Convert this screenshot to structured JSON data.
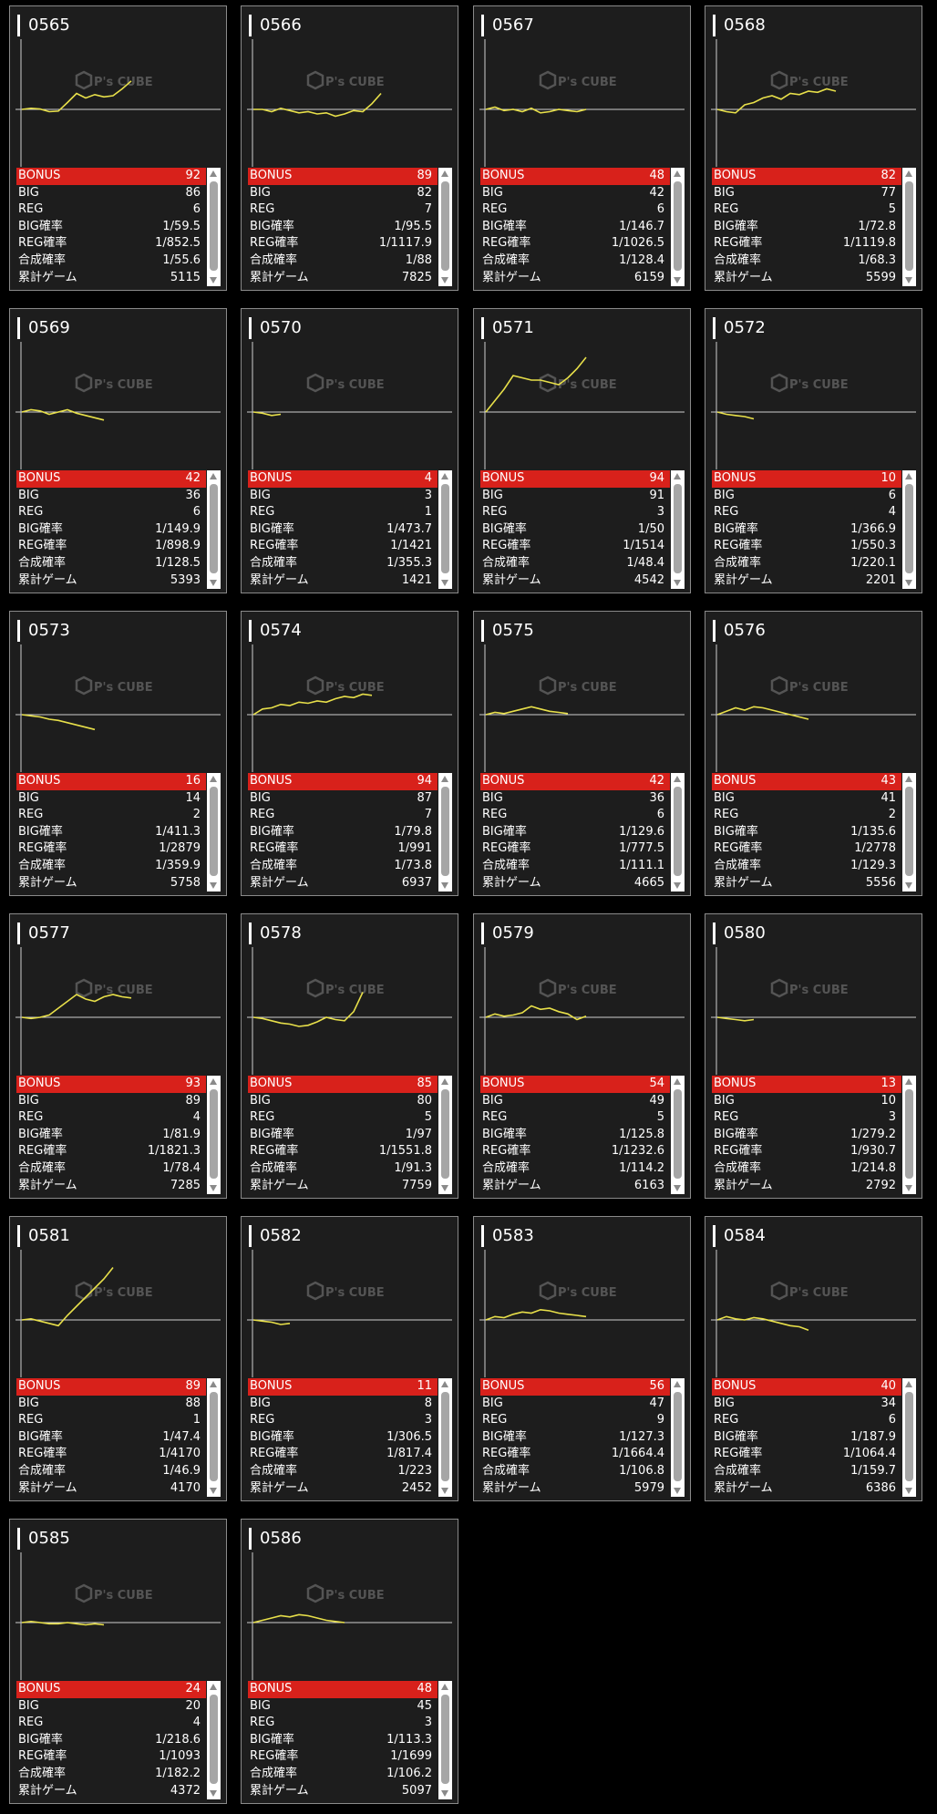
{
  "labels": {
    "bonus": "BONUS",
    "big": "BIG",
    "reg": "REG",
    "big_rate": "BIG確率",
    "reg_rate": "REG確率",
    "combined_rate": "合成確率",
    "total_games": "累計ゲーム"
  },
  "watermark": {
    "brand": "P's CUBE"
  },
  "colors": {
    "bonus_bar": "#d8211b",
    "line": "#e8e04a",
    "card_bg": "#1d1d1d"
  },
  "machines": [
    {
      "id": "0565",
      "bonus": "92",
      "big": "86",
      "reg": "6",
      "big_rate": "1/59.5",
      "reg_rate": "1/852.5",
      "combined_rate": "1/55.6",
      "total_games": "5115",
      "trend": [
        0,
        1,
        0.3,
        -2,
        -1.5,
        6,
        14,
        10,
        13,
        11,
        12,
        18,
        25
      ]
    },
    {
      "id": "0566",
      "bonus": "89",
      "big": "82",
      "reg": "7",
      "big_rate": "1/95.5",
      "reg_rate": "1/1117.9",
      "combined_rate": "1/88",
      "total_games": "7825",
      "trend": [
        0,
        0,
        -2,
        1,
        -1,
        -3,
        -2,
        -4,
        -3,
        -6,
        -4,
        -1,
        -2,
        5,
        14
      ]
    },
    {
      "id": "0567",
      "bonus": "48",
      "big": "42",
      "reg": "6",
      "big_rate": "1/146.7",
      "reg_rate": "1/1026.5",
      "combined_rate": "1/128.4",
      "total_games": "6159",
      "trend": [
        0,
        2,
        -1,
        0,
        -2,
        1,
        -3,
        -2,
        0,
        -1,
        -2,
        0
      ]
    },
    {
      "id": "0568",
      "bonus": "82",
      "big": "77",
      "reg": "5",
      "big_rate": "1/72.8",
      "reg_rate": "1/1119.8",
      "combined_rate": "1/68.3",
      "total_games": "5599",
      "trend": [
        0,
        -2,
        -3,
        4,
        6,
        10,
        12,
        9,
        14,
        13,
        16,
        15,
        18,
        16
      ]
    },
    {
      "id": "0569",
      "bonus": "42",
      "big": "36",
      "reg": "6",
      "big_rate": "1/149.9",
      "reg_rate": "1/898.9",
      "combined_rate": "1/128.5",
      "total_games": "5393",
      "trend": [
        0,
        2,
        1,
        -2,
        0,
        2,
        -1,
        -3,
        -5,
        -7
      ]
    },
    {
      "id": "0570",
      "bonus": "4",
      "big": "3",
      "reg": "1",
      "big_rate": "1/473.7",
      "reg_rate": "1/1421",
      "combined_rate": "1/355.3",
      "total_games": "1421",
      "trend": [
        0,
        -1,
        -3,
        -2
      ]
    },
    {
      "id": "0571",
      "bonus": "94",
      "big": "91",
      "reg": "3",
      "big_rate": "1/50",
      "reg_rate": "1/1514",
      "combined_rate": "1/48.4",
      "total_games": "4542",
      "trend": [
        0,
        10,
        20,
        32,
        30,
        28,
        28,
        26,
        24,
        30,
        38,
        48
      ]
    },
    {
      "id": "0572",
      "bonus": "10",
      "big": "6",
      "reg": "4",
      "big_rate": "1/366.9",
      "reg_rate": "1/550.3",
      "combined_rate": "1/220.1",
      "total_games": "2201",
      "trend": [
        0,
        -2,
        -3,
        -4,
        -6
      ]
    },
    {
      "id": "0573",
      "bonus": "16",
      "big": "14",
      "reg": "2",
      "big_rate": "1/411.3",
      "reg_rate": "1/2879",
      "combined_rate": "1/359.9",
      "total_games": "5758",
      "trend": [
        0,
        -1,
        -2,
        -4,
        -5,
        -7,
        -9,
        -11,
        -13
      ]
    },
    {
      "id": "0574",
      "bonus": "94",
      "big": "87",
      "reg": "7",
      "big_rate": "1/79.8",
      "reg_rate": "1/991",
      "combined_rate": "1/73.8",
      "total_games": "6937",
      "trend": [
        0,
        5,
        6,
        9,
        8,
        11,
        10,
        12,
        11,
        14,
        16,
        15,
        18,
        17
      ]
    },
    {
      "id": "0575",
      "bonus": "42",
      "big": "36",
      "reg": "6",
      "big_rate": "1/129.6",
      "reg_rate": "1/777.5",
      "combined_rate": "1/111.1",
      "total_games": "4665",
      "trend": [
        0,
        2,
        1,
        3,
        5,
        7,
        5,
        3,
        2,
        1
      ]
    },
    {
      "id": "0576",
      "bonus": "43",
      "big": "41",
      "reg": "2",
      "big_rate": "1/135.6",
      "reg_rate": "1/2778",
      "combined_rate": "1/129.3",
      "total_games": "5556",
      "trend": [
        0,
        3,
        6,
        4,
        7,
        6,
        4,
        2,
        0,
        -2,
        -4
      ]
    },
    {
      "id": "0577",
      "bonus": "93",
      "big": "89",
      "reg": "4",
      "big_rate": "1/81.9",
      "reg_rate": "1/1821.3",
      "combined_rate": "1/78.4",
      "total_games": "7285",
      "trend": [
        0,
        -1,
        0,
        2,
        8,
        14,
        20,
        16,
        14,
        18,
        20,
        18,
        17
      ]
    },
    {
      "id": "0578",
      "bonus": "85",
      "big": "80",
      "reg": "5",
      "big_rate": "1/97",
      "reg_rate": "1/1551.8",
      "combined_rate": "1/91.3",
      "total_games": "7759",
      "trend": [
        0,
        -1,
        -3,
        -5,
        -6,
        -8,
        -7,
        -4,
        0,
        -2,
        -3,
        5,
        22
      ]
    },
    {
      "id": "0579",
      "bonus": "54",
      "big": "49",
      "reg": "5",
      "big_rate": "1/125.8",
      "reg_rate": "1/1232.6",
      "combined_rate": "1/114.2",
      "total_games": "6163",
      "trend": [
        0,
        3,
        1,
        2,
        4,
        10,
        7,
        8,
        5,
        3,
        -2,
        1
      ]
    },
    {
      "id": "0580",
      "bonus": "13",
      "big": "10",
      "reg": "3",
      "big_rate": "1/279.2",
      "reg_rate": "1/930.7",
      "combined_rate": "1/214.8",
      "total_games": "2792",
      "trend": [
        0,
        -1,
        -2,
        -3,
        -2
      ]
    },
    {
      "id": "0581",
      "bonus": "89",
      "big": "88",
      "reg": "1",
      "big_rate": "1/47.4",
      "reg_rate": "1/4170",
      "combined_rate": "1/46.9",
      "total_games": "4170",
      "trend": [
        0,
        1,
        -1,
        -3,
        -5,
        4,
        12,
        20,
        28,
        36,
        46
      ]
    },
    {
      "id": "0582",
      "bonus": "11",
      "big": "8",
      "reg": "3",
      "big_rate": "1/306.5",
      "reg_rate": "1/817.4",
      "combined_rate": "1/223",
      "total_games": "2452",
      "trend": [
        0,
        -1,
        -2,
        -4,
        -3
      ]
    },
    {
      "id": "0583",
      "bonus": "56",
      "big": "47",
      "reg": "9",
      "big_rate": "1/127.3",
      "reg_rate": "1/1664.4",
      "combined_rate": "1/106.8",
      "total_games": "5979",
      "trend": [
        0,
        3,
        2,
        5,
        7,
        6,
        9,
        8,
        6,
        5,
        4,
        3
      ]
    },
    {
      "id": "0584",
      "bonus": "40",
      "big": "34",
      "reg": "6",
      "big_rate": "1/187.9",
      "reg_rate": "1/1064.4",
      "combined_rate": "1/159.7",
      "total_games": "6386",
      "trend": [
        0,
        3,
        1,
        0,
        2,
        1,
        -1,
        -3,
        -5,
        -6,
        -9
      ]
    },
    {
      "id": "0585",
      "bonus": "24",
      "big": "20",
      "reg": "4",
      "big_rate": "1/218.6",
      "reg_rate": "1/1093",
      "combined_rate": "1/182.2",
      "total_games": "4372",
      "trend": [
        0,
        1,
        0,
        -1,
        -1,
        0,
        -1,
        -2,
        -1,
        -2
      ]
    },
    {
      "id": "0586",
      "bonus": "48",
      "big": "45",
      "reg": "3",
      "big_rate": "1/113.3",
      "reg_rate": "1/1699",
      "combined_rate": "1/106.2",
      "total_games": "5097",
      "trend": [
        0,
        2,
        4,
        6,
        5,
        7,
        6,
        4,
        2,
        1,
        0
      ]
    }
  ]
}
